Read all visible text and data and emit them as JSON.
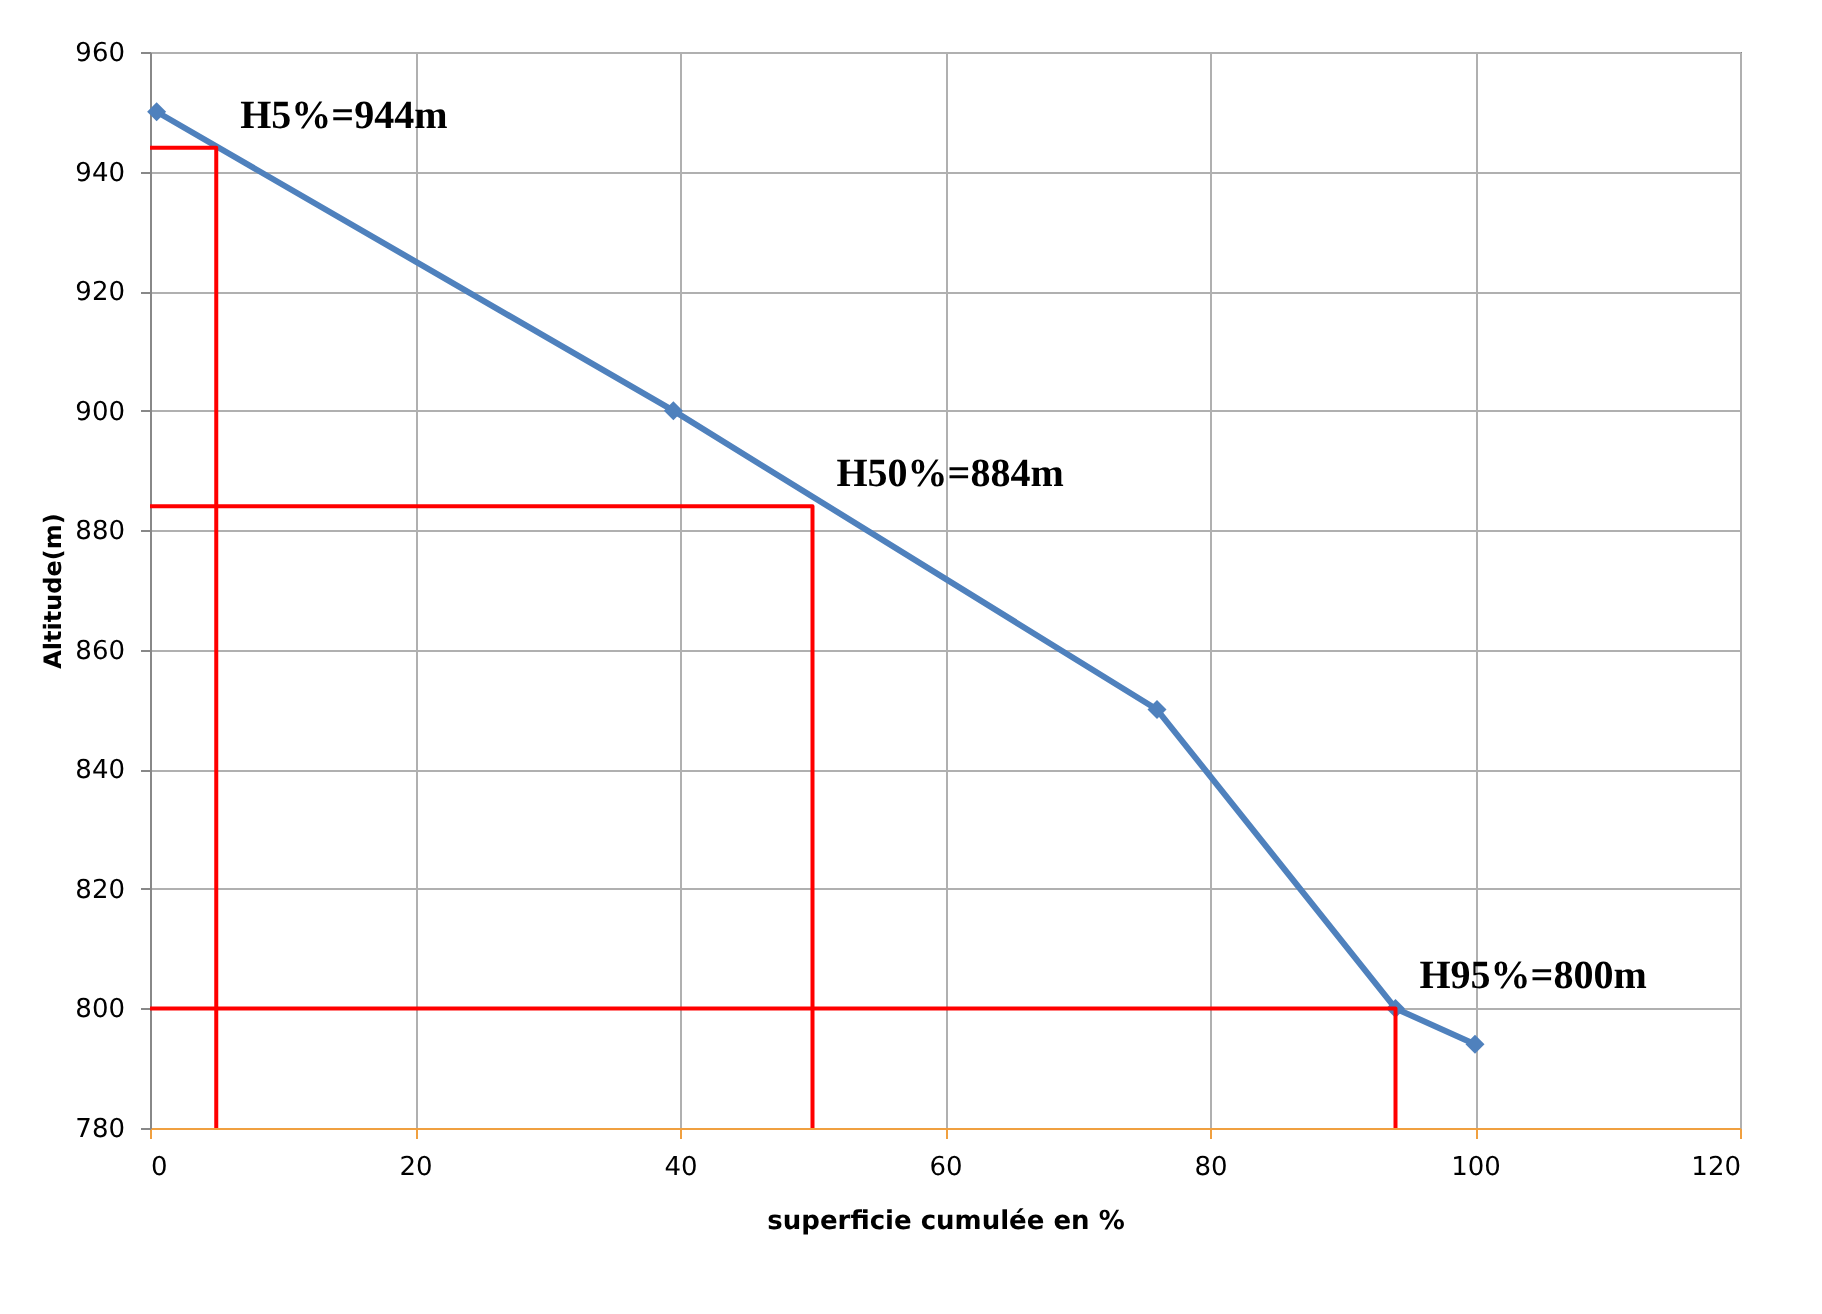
{
  "chart_data": {
    "type": "line",
    "xlabel": "superficie cumulée en %",
    "ylabel": "Altitude(m)",
    "xlim": [
      0,
      120
    ],
    "xticks": [
      0,
      20,
      40,
      60,
      80,
      100,
      120
    ],
    "ylim": [
      780,
      960
    ],
    "yticks": [
      780,
      800,
      820,
      840,
      860,
      880,
      900,
      920,
      940,
      960
    ],
    "grid": true,
    "marker": "diamond",
    "line_style": "solid",
    "series": [
      {
        "color": "#4f81bd",
        "x": [
          0.5,
          39.5,
          76,
          94,
          100
        ],
        "values": [
          950,
          900,
          850,
          800,
          794
        ]
      },
      {
        "color": "#ff0000",
        "marker": "none",
        "x": [
          0,
          5,
          5
        ],
        "values": [
          944,
          944,
          780
        ]
      },
      {
        "color": "#ff0000",
        "marker": "none",
        "x": [
          0,
          50,
          50
        ],
        "values": [
          884,
          884,
          780
        ]
      },
      {
        "color": "#ff0000",
        "marker": "none",
        "x": [
          0,
          94,
          94
        ],
        "values": [
          800,
          800,
          780
        ]
      }
    ],
    "annotations": [
      {
        "text": "H5%=944m",
        "x": 5,
        "y": 944
      },
      {
        "text": "H50%=884m",
        "x": 50,
        "y": 884
      },
      {
        "text": "H95%=800m",
        "x": 94,
        "y": 800
      }
    ]
  }
}
